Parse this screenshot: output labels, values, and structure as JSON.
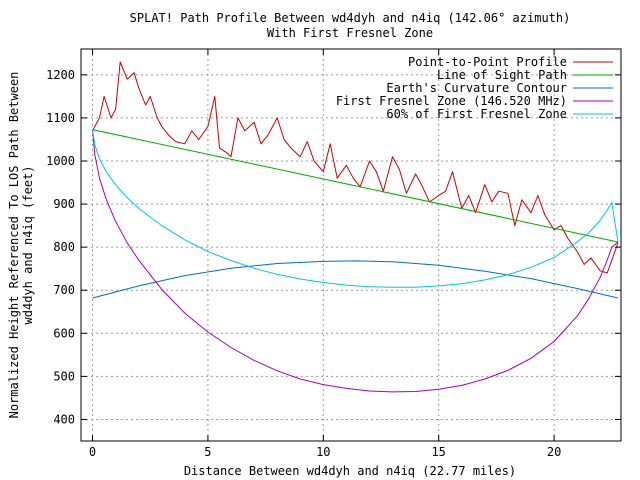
{
  "chart_data": {
    "type": "line",
    "title": "SPLAT! Path Profile Between wd4dyh and n4iq (142.06° azimuth)",
    "subtitle": "With First Fresnel Zone",
    "xlabel": "Distance Between wd4dyh and n4iq (22.77 miles)",
    "ylabel_line1": "Normalized Height Referenced To LOS Path Between",
    "ylabel_line2": "wd4dyh and n4iq (feet)",
    "xlim": [
      -0.5,
      22.9
    ],
    "ylim": [
      350,
      1260
    ],
    "xticks": [
      0,
      5,
      10,
      15,
      20
    ],
    "yticks": [
      400,
      500,
      600,
      700,
      800,
      900,
      1000,
      1100,
      1200
    ],
    "grid": true,
    "legend_position": "top-right",
    "series": [
      {
        "name": "Point-to-Point Profile",
        "color": "#cc0000",
        "x": [
          0.0,
          0.3,
          0.5,
          0.8,
          1.0,
          1.2,
          1.5,
          1.8,
          2.0,
          2.3,
          2.5,
          2.8,
          3.0,
          3.3,
          3.6,
          4.0,
          4.3,
          4.6,
          5.0,
          5.3,
          5.5,
          5.8,
          6.0,
          6.3,
          6.6,
          7.0,
          7.3,
          7.6,
          8.0,
          8.3,
          8.6,
          9.0,
          9.3,
          9.6,
          10.0,
          10.3,
          10.6,
          11.0,
          11.3,
          11.6,
          12.0,
          12.3,
          12.6,
          13.0,
          13.3,
          13.6,
          14.0,
          14.3,
          14.6,
          15.0,
          15.3,
          15.6,
          16.0,
          16.3,
          16.6,
          17.0,
          17.3,
          17.6,
          18.0,
          18.3,
          18.6,
          19.0,
          19.3,
          19.6,
          20.0,
          20.3,
          20.6,
          21.0,
          21.3,
          21.6,
          22.0,
          22.3,
          22.5,
          22.77
        ],
        "values": [
          1070,
          1100,
          1150,
          1100,
          1120,
          1230,
          1190,
          1205,
          1170,
          1130,
          1150,
          1100,
          1080,
          1060,
          1045,
          1040,
          1070,
          1050,
          1080,
          1150,
          1030,
          1020,
          1010,
          1100,
          1070,
          1090,
          1040,
          1060,
          1100,
          1050,
          1030,
          1010,
          1045,
          1000,
          975,
          1040,
          960,
          990,
          960,
          940,
          1000,
          975,
          930,
          1010,
          980,
          925,
          970,
          940,
          905,
          920,
          930,
          975,
          890,
          920,
          880,
          945,
          905,
          930,
          925,
          850,
          910,
          880,
          920,
          875,
          840,
          850,
          820,
          790,
          760,
          775,
          745,
          740,
          770,
          810
        ]
      },
      {
        "name": "Line of Sight Path",
        "color": "#00aa00",
        "x": [
          0,
          22.77
        ],
        "values": [
          1073,
          812
        ]
      },
      {
        "name": "Earth's Curvature Contour",
        "color": "#0070c0",
        "x": [
          0,
          2,
          4,
          6,
          8,
          10,
          11.4,
          13,
          15,
          17,
          19,
          21,
          22.77
        ],
        "values": [
          682,
          710,
          734,
          751,
          762,
          767,
          768,
          766,
          758,
          744,
          727,
          704,
          682
        ]
      },
      {
        "name": "First Fresnel Zone (146.520 MHz)",
        "color": "#a000c0",
        "x": [
          0,
          0.1,
          0.3,
          0.6,
          1.0,
          1.5,
          2.0,
          3.0,
          4.0,
          5.0,
          6.0,
          7.0,
          8.0,
          9.0,
          10.0,
          11.0,
          12.0,
          13.0,
          14.0,
          15.0,
          16.0,
          17.0,
          18.0,
          19.0,
          20.0,
          21.0,
          21.5,
          22.0,
          22.3,
          22.5,
          22.77
        ],
        "values": [
          1073,
          1015,
          960,
          910,
          860,
          810,
          770,
          702,
          647,
          603,
          567,
          537,
          513,
          494,
          481,
          472,
          466,
          464,
          465,
          470,
          479,
          494,
          514,
          542,
          581,
          640,
          680,
          730,
          770,
          800,
          812
        ]
      },
      {
        "name": "60% of First Fresnel Zone",
        "color": "#00c8d8",
        "x": [
          0,
          0.1,
          0.3,
          0.6,
          1.0,
          1.5,
          2.0,
          3.0,
          4.0,
          5.0,
          6.0,
          7.0,
          8.0,
          9.0,
          10.0,
          11.0,
          12.0,
          13.0,
          14.0,
          15.0,
          16.0,
          17.0,
          18.0,
          19.0,
          20.0,
          21.0,
          21.5,
          22.0,
          22.3,
          22.5,
          22.77
        ],
        "values": [
          1073,
          1038,
          1005,
          975,
          945,
          915,
          890,
          850,
          817,
          790,
          769,
          751,
          737,
          726,
          718,
          712,
          708,
          707,
          707,
          710,
          715,
          724,
          736,
          753,
          776,
          812,
          833,
          862,
          886,
          904,
          812
        ]
      }
    ]
  }
}
